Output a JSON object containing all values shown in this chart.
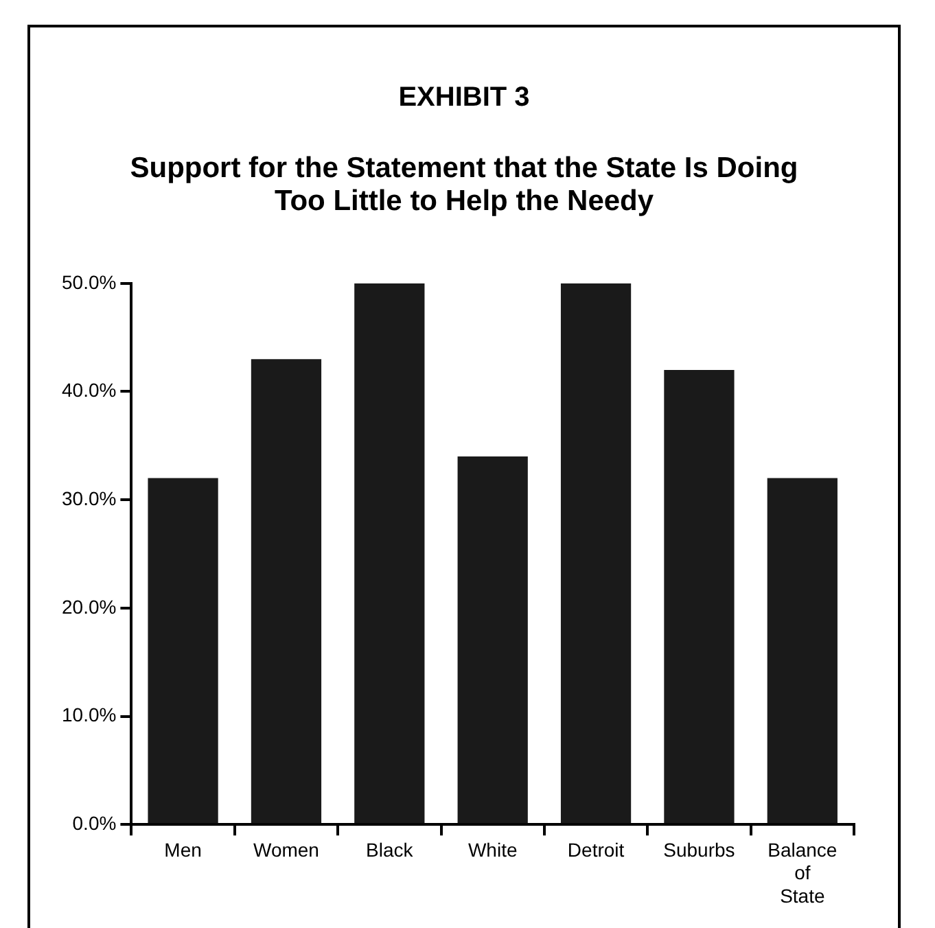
{
  "chart_data": {
    "type": "bar",
    "title": "EXHIBIT 3",
    "subtitle": "Support for the Statement that the State Is Doing Too Little to Help the Needy",
    "categories": [
      "Men",
      "Women",
      "Black",
      "White",
      "Detroit",
      "Suburbs",
      "Balance of State"
    ],
    "values": [
      32,
      43,
      50,
      34,
      50,
      42,
      32
    ],
    "color": "#1a1a1a",
    "ylim": [
      0,
      50
    ],
    "yticks": [
      {
        "value": 0,
        "label": "0.0%"
      },
      {
        "value": 10,
        "label": "10.0%"
      },
      {
        "value": 20,
        "label": "20.0%"
      },
      {
        "value": 30,
        "label": "30.0%"
      },
      {
        "value": 40,
        "label": "40.0%"
      },
      {
        "value": 50,
        "label": "50.0%"
      }
    ],
    "grid": false,
    "legend": false
  }
}
